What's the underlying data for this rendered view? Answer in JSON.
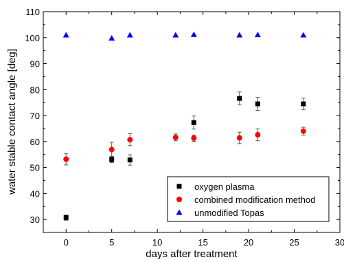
{
  "chart_data": {
    "type": "scatter",
    "title": "",
    "xlabel": "days after treatment",
    "ylabel": "water stable contact angle [deg]",
    "xlim": [
      -2.5,
      30
    ],
    "ylim": [
      25,
      110
    ],
    "xticks": [
      0,
      5,
      10,
      15,
      20,
      25,
      30
    ],
    "yticks": [
      30,
      40,
      50,
      60,
      70,
      80,
      90,
      100,
      110
    ],
    "grid": false,
    "legend_position": "bottom-right",
    "series": [
      {
        "name": "oxygen plasma",
        "marker": "square",
        "color": "#000000",
        "points": [
          {
            "x": 0,
            "y": 30.7,
            "err": 1.0
          },
          {
            "x": 5,
            "y": 53.1,
            "err": 1.2
          },
          {
            "x": 7,
            "y": 52.9,
            "err": 2.0
          },
          {
            "x": 14,
            "y": 67.3,
            "err": 2.5
          },
          {
            "x": 19,
            "y": 76.6,
            "err": 2.5
          },
          {
            "x": 21,
            "y": 74.5,
            "err": 2.5
          },
          {
            "x": 26,
            "y": 74.5,
            "err": 2.2
          }
        ]
      },
      {
        "name": "combined modification method",
        "marker": "circle",
        "color": "#ff0000",
        "points": [
          {
            "x": 0,
            "y": 53.2,
            "err": 2.2
          },
          {
            "x": 5,
            "y": 56.9,
            "err": 2.8
          },
          {
            "x": 7,
            "y": 60.7,
            "err": 2.3
          },
          {
            "x": 12,
            "y": 61.6,
            "err": 1.3
          },
          {
            "x": 14,
            "y": 61.3,
            "err": 1.2
          },
          {
            "x": 19,
            "y": 61.4,
            "err": 2.2
          },
          {
            "x": 21,
            "y": 62.6,
            "err": 2.3
          },
          {
            "x": 26,
            "y": 64.0,
            "err": 1.5
          }
        ]
      },
      {
        "name": "unmodified Topas",
        "marker": "triangle",
        "color": "#0000ff",
        "points": [
          {
            "x": 0,
            "y": 101.0,
            "err": 0
          },
          {
            "x": 5,
            "y": 99.8,
            "err": 0
          },
          {
            "x": 7,
            "y": 101.0,
            "err": 0
          },
          {
            "x": 12,
            "y": 101.0,
            "err": 0
          },
          {
            "x": 14,
            "y": 101.2,
            "err": 0
          },
          {
            "x": 19,
            "y": 101.0,
            "err": 0
          },
          {
            "x": 21,
            "y": 101.1,
            "err": 0
          },
          {
            "x": 26,
            "y": 101.0,
            "err": 0
          }
        ]
      }
    ]
  }
}
